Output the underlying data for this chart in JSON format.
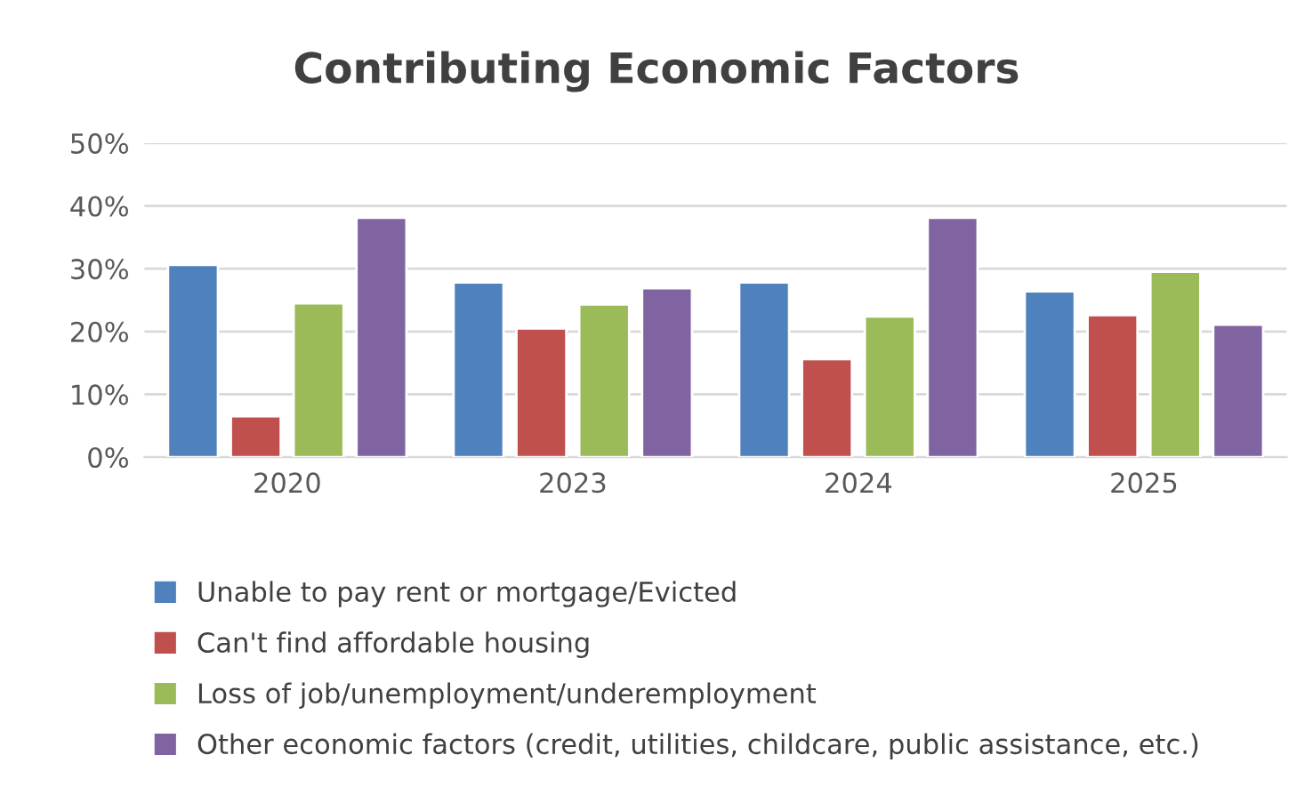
{
  "chart_data": {
    "type": "bar",
    "title": "Contributing Economic Factors",
    "categories": [
      "2020",
      "2023",
      "2024",
      "2025"
    ],
    "series": [
      {
        "name": "Unable to pay rent or mortgage/Evicted",
        "color": "#4f81bd",
        "values": [
          30.6,
          27.8,
          27.8,
          26.4
        ]
      },
      {
        "name": "Can't find affordable housing",
        "color": "#c0504d",
        "values": [
          6.5,
          20.5,
          15.6,
          22.6
        ]
      },
      {
        "name": "Loss of job/unemployment/underemployment",
        "color": "#9bbb59",
        "values": [
          24.5,
          24.3,
          22.4,
          29.5
        ]
      },
      {
        "name": "Other economic factors (credit, utilities, childcare, public assistance, etc.)",
        "color": "#8064a2",
        "values": [
          38.1,
          26.9,
          38.1,
          21.1
        ]
      }
    ],
    "ylim": [
      0,
      50
    ],
    "yticks": [
      {
        "value": 0,
        "label": "0%"
      },
      {
        "value": 10,
        "label": "10%"
      },
      {
        "value": 20,
        "label": "20%"
      },
      {
        "value": 30,
        "label": "30%"
      },
      {
        "value": 40,
        "label": "40%"
      },
      {
        "value": 50,
        "label": "50%"
      }
    ],
    "grid": "y",
    "legend": "bottom"
  }
}
